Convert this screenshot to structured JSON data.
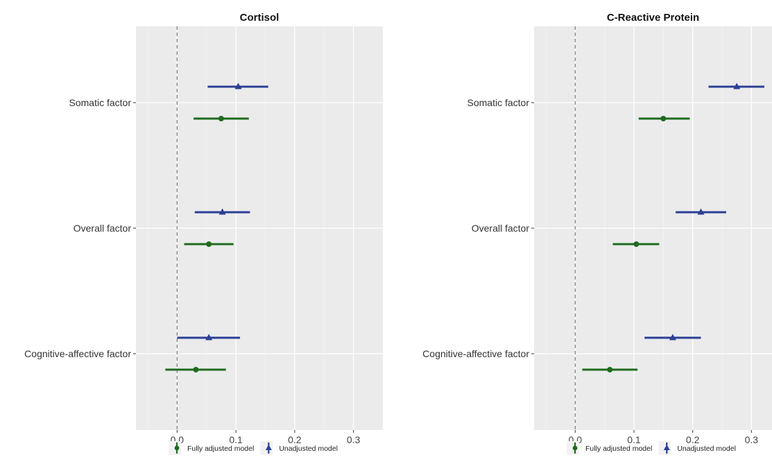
{
  "colors": {
    "panel_bg": "#ebebeb",
    "grid_major": "#ffffff",
    "grid_minor": "#f4f4f4",
    "fully_adjusted": "#1e6b1e",
    "unadjusted": "#2b3f95",
    "zero_line": "#7a7a7a"
  },
  "chart_data": [
    {
      "type": "forest",
      "title": "Cortisol",
      "categories": [
        "Somatic factor",
        "Overall factor",
        "Cognitive-affective factor"
      ],
      "xlim": [
        -0.07,
        0.35
      ],
      "xticks": [
        0.0,
        0.1,
        0.2,
        0.3
      ],
      "xtick_labels": [
        "0.0",
        "0.1",
        "0.2",
        "0.3"
      ],
      "reference_line": 0,
      "grid": true,
      "legend_position": "bottom",
      "series": [
        {
          "name": "Fully adjusted model",
          "marker": "circle",
          "estimates": [
            0.075,
            0.054,
            0.032
          ],
          "lower": [
            0.028,
            0.012,
            -0.02
          ],
          "upper": [
            0.122,
            0.096,
            0.083
          ]
        },
        {
          "name": "Unadjusted model",
          "marker": "triangle",
          "estimates": [
            0.104,
            0.077,
            0.054
          ],
          "lower": [
            0.052,
            0.03,
            0.0
          ],
          "upper": [
            0.155,
            0.124,
            0.107
          ]
        }
      ]
    },
    {
      "type": "forest",
      "title": "C-Reactive Protein",
      "categories": [
        "Somatic factor",
        "Overall factor",
        "Cognitive-affective factor"
      ],
      "xlim": [
        -0.07,
        0.335
      ],
      "xticks": [
        0.0,
        0.1,
        0.2,
        0.3
      ],
      "xtick_labels": [
        "0.0",
        "0.1",
        "0.2",
        "0.3"
      ],
      "reference_line": 0,
      "grid": true,
      "legend_position": "bottom",
      "series": [
        {
          "name": "Fully adjusted model",
          "marker": "circle",
          "estimates": [
            0.15,
            0.104,
            0.059
          ],
          "lower": [
            0.108,
            0.064,
            0.012
          ],
          "upper": [
            0.195,
            0.143,
            0.106
          ]
        },
        {
          "name": "Unadjusted model",
          "marker": "triangle",
          "estimates": [
            0.275,
            0.214,
            0.166
          ],
          "lower": [
            0.227,
            0.171,
            0.118
          ],
          "upper": [
            0.322,
            0.257,
            0.214
          ]
        }
      ]
    }
  ]
}
